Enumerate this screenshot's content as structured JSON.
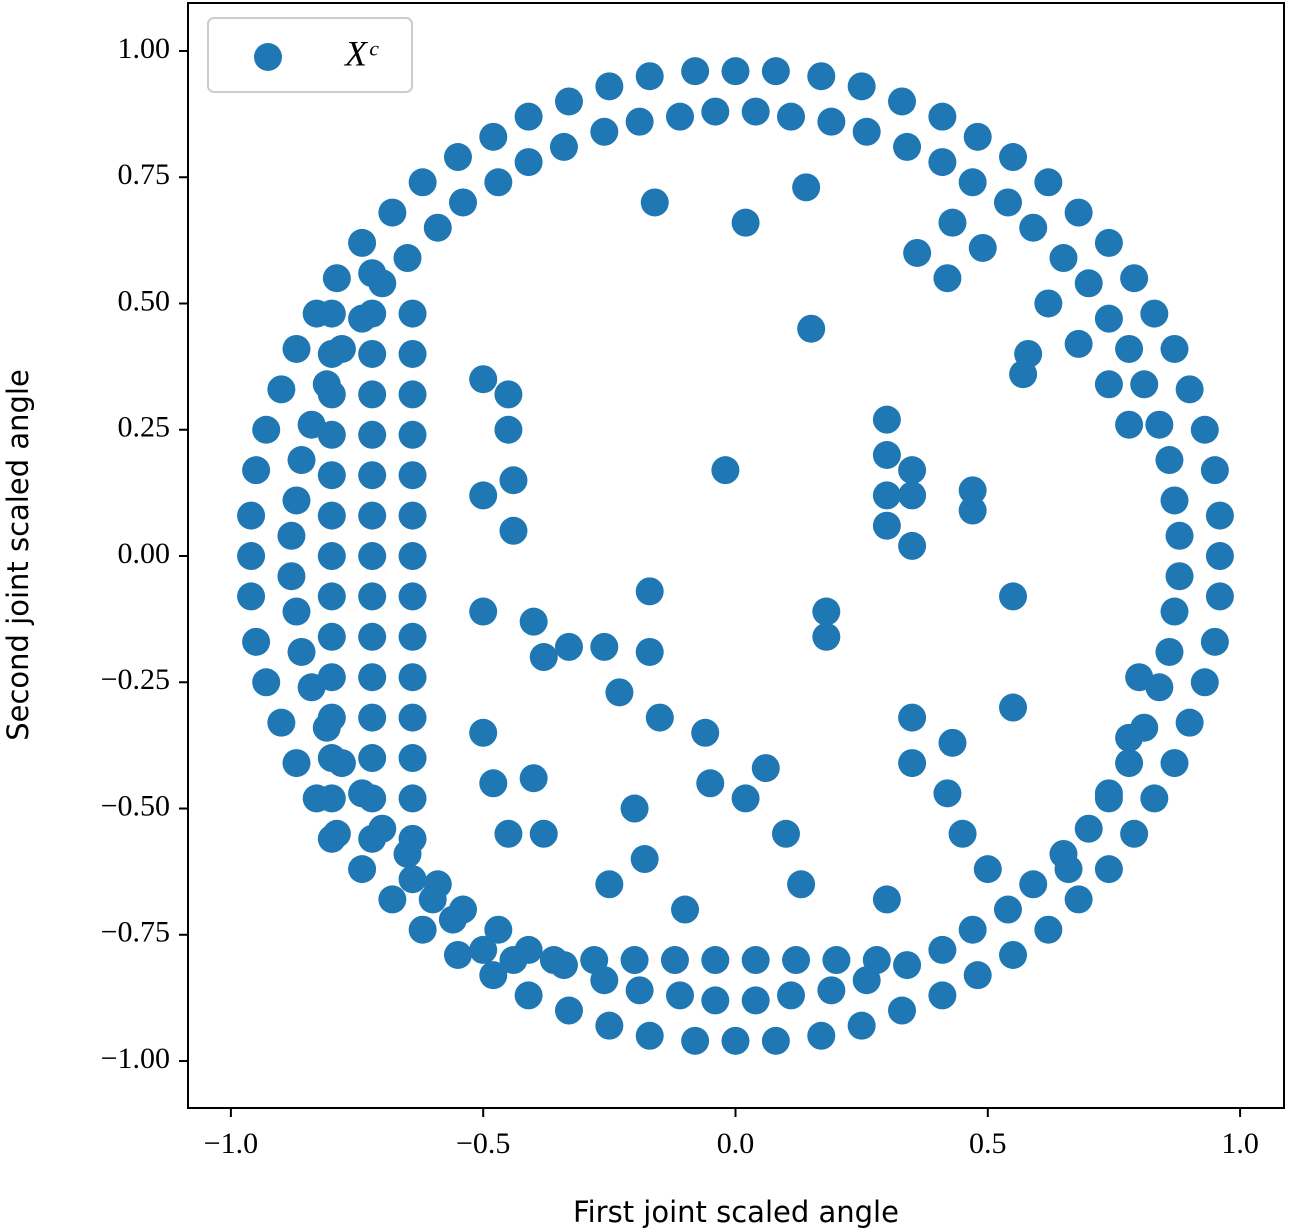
{
  "chart_data": {
    "type": "scatter",
    "xlabel": "First joint scaled angle",
    "ylabel": "Second joint scaled angle",
    "xlim": [
      -1.085,
      1.087
    ],
    "ylim": [
      -1.093,
      1.095
    ],
    "xticks": [
      {
        "value": -1,
        "label": "−1.0"
      },
      {
        "value": -0.5,
        "label": "−0.5"
      },
      {
        "value": 0,
        "label": "0.0"
      },
      {
        "value": 0.5,
        "label": "0.5"
      },
      {
        "value": 1,
        "label": "1.0"
      }
    ],
    "yticks": [
      {
        "value": -1,
        "label": "−1.00"
      },
      {
        "value": -0.75,
        "label": "−0.75"
      },
      {
        "value": -0.5,
        "label": "−0.50"
      },
      {
        "value": -0.25,
        "label": "−0.25"
      },
      {
        "value": 0,
        "label": "0.00"
      },
      {
        "value": 0.25,
        "label": "0.25"
      },
      {
        "value": 0.5,
        "label": "0.50"
      },
      {
        "value": 0.75,
        "label": "0.75"
      },
      {
        "value": 1,
        "label": "1.00"
      }
    ],
    "grid": false,
    "legend": "upper left",
    "series": [
      {
        "name": "Xᶜ",
        "color": "#1f77b4",
        "x": [
          0.96,
          0.96,
          0.95,
          0.93,
          0.9,
          0.87,
          0.83,
          0.79,
          0.74,
          0.68,
          0.62,
          0.55,
          0.48,
          0.41,
          0.33,
          0.25,
          0.17,
          0.08,
          0,
          -0.08,
          -0.17,
          -0.25,
          -0.33,
          -0.41,
          -0.48,
          -0.55,
          -0.62,
          -0.68,
          -0.74,
          -0.79,
          -0.83,
          -0.87,
          -0.9,
          -0.93,
          -0.95,
          -0.96,
          -0.96,
          -0.96,
          -0.95,
          -0.93,
          -0.9,
          -0.87,
          -0.83,
          -0.79,
          -0.74,
          -0.68,
          -0.62,
          -0.55,
          -0.48,
          -0.41,
          -0.33,
          -0.25,
          -0.17,
          -0.08,
          0,
          0.08,
          0.17,
          0.25,
          0.33,
          0.41,
          0.48,
          0.55,
          0.62,
          0.68,
          0.74,
          0.79,
          0.83,
          0.87,
          0.9,
          0.93,
          0.95,
          0.96,
          0.88,
          0.87,
          0.86,
          0.84,
          0.81,
          0.78,
          0.74,
          0.7,
          0.65,
          0.59,
          0.54,
          0.47,
          0.41,
          0.34,
          0.26,
          0.19,
          0.11,
          0.04,
          -0.04,
          -0.11,
          -0.19,
          -0.26,
          -0.34,
          -0.41,
          -0.47,
          -0.54,
          -0.59,
          -0.65,
          -0.7,
          -0.74,
          -0.78,
          -0.81,
          -0.84,
          -0.86,
          -0.87,
          -0.88,
          -0.88,
          -0.87,
          -0.86,
          -0.84,
          -0.81,
          -0.78,
          -0.74,
          -0.7,
          -0.65,
          -0.59,
          -0.54,
          -0.47,
          -0.41,
          -0.34,
          -0.26,
          -0.19,
          -0.11,
          -0.04,
          0.04,
          0.11,
          0.19,
          0.26,
          0.34,
          0.41,
          0.47,
          0.54,
          0.59,
          0.65,
          0.7,
          0.74,
          0.78,
          0.81,
          0.84,
          0.86,
          0.87,
          0.88,
          -0.8,
          -0.8,
          -0.8,
          -0.8,
          -0.8,
          -0.8,
          -0.8,
          -0.8,
          -0.8,
          -0.8,
          -0.8,
          -0.8,
          -0.8,
          -0.8,
          -0.72,
          -0.72,
          -0.72,
          -0.72,
          -0.72,
          -0.72,
          -0.72,
          -0.72,
          -0.72,
          -0.72,
          -0.72,
          -0.72,
          -0.72,
          -0.72,
          -0.72,
          -0.64,
          -0.64,
          -0.64,
          -0.64,
          -0.64,
          -0.64,
          -0.64,
          -0.64,
          -0.64,
          -0.64,
          -0.64,
          -0.64,
          -0.64,
          -0.64,
          -0.64,
          -0.56,
          -0.5,
          -0.6,
          -0.44,
          -0.36,
          -0.28,
          -0.2,
          -0.12,
          -0.04,
          0.04,
          0.12,
          0.2,
          0.28,
          0.66,
          0.74,
          0.78,
          0.8,
          0.62,
          0.68,
          0.74,
          0.78,
          -0.02,
          -0.16,
          0.02,
          0.14,
          0.15,
          0.3,
          0.3,
          0.35,
          0.3,
          0.35,
          0.47,
          0.47,
          0.36,
          0.42,
          0.3,
          0.35,
          -0.5,
          -0.4,
          -0.38,
          -0.33,
          -0.26,
          -0.23,
          -0.17,
          -0.17,
          -0.15,
          -0.5,
          -0.48,
          -0.45,
          -0.4,
          -0.38,
          -0.06,
          -0.05,
          0.02,
          0.06,
          0.1,
          0.13,
          0.18,
          0.18,
          0.35,
          0.35,
          0.43,
          0.42,
          0.45,
          0.55,
          0.55,
          0.5,
          -0.2,
          -0.18,
          -0.25,
          -0.1,
          0.3,
          -0.45,
          -0.5,
          -0.45,
          -0.44,
          -0.44,
          -0.5,
          0.58,
          0.57,
          0.49,
          0.43
        ],
        "values": [
          0,
          0.08,
          0.17,
          0.25,
          0.33,
          0.41,
          0.48,
          0.55,
          0.62,
          0.68,
          0.74,
          0.79,
          0.83,
          0.87,
          0.9,
          0.93,
          0.95,
          0.96,
          0.96,
          0.96,
          0.95,
          0.93,
          0.9,
          0.87,
          0.83,
          0.79,
          0.74,
          0.68,
          0.62,
          0.55,
          0.48,
          0.41,
          0.33,
          0.25,
          0.17,
          0.08,
          0,
          -0.08,
          -0.17,
          -0.25,
          -0.33,
          -0.41,
          -0.48,
          -0.55,
          -0.62,
          -0.68,
          -0.74,
          -0.79,
          -0.83,
          -0.87,
          -0.9,
          -0.93,
          -0.95,
          -0.96,
          -0.96,
          -0.96,
          -0.95,
          -0.93,
          -0.9,
          -0.87,
          -0.83,
          -0.79,
          -0.74,
          -0.68,
          -0.62,
          -0.55,
          -0.48,
          -0.41,
          -0.33,
          -0.25,
          -0.17,
          -0.08,
          0.04,
          0.11,
          0.19,
          0.26,
          0.34,
          0.41,
          0.47,
          0.54,
          0.59,
          0.65,
          0.7,
          0.74,
          0.78,
          0.81,
          0.84,
          0.86,
          0.87,
          0.88,
          0.88,
          0.87,
          0.86,
          0.84,
          0.81,
          0.78,
          0.74,
          0.7,
          0.65,
          0.59,
          0.54,
          0.47,
          0.41,
          0.34,
          0.26,
          0.19,
          0.11,
          0.04,
          -0.04,
          -0.11,
          -0.19,
          -0.26,
          -0.34,
          -0.41,
          -0.47,
          -0.54,
          -0.59,
          -0.65,
          -0.7,
          -0.74,
          -0.78,
          -0.81,
          -0.84,
          -0.86,
          -0.87,
          -0.88,
          -0.88,
          -0.87,
          -0.86,
          -0.84,
          -0.81,
          -0.78,
          -0.74,
          -0.7,
          -0.65,
          -0.59,
          -0.54,
          -0.47,
          -0.41,
          -0.34,
          -0.26,
          -0.19,
          -0.11,
          -0.04,
          -0.56,
          -0.48,
          -0.4,
          -0.32,
          -0.24,
          -0.16,
          -0.08,
          0,
          0.08,
          0.16,
          0.24,
          0.32,
          0.4,
          0.48,
          -0.56,
          -0.48,
          -0.4,
          -0.32,
          -0.24,
          -0.16,
          -0.08,
          0,
          0.08,
          0.16,
          0.24,
          0.32,
          0.4,
          0.48,
          0.56,
          -0.64,
          -0.56,
          -0.48,
          -0.4,
          -0.32,
          -0.24,
          -0.16,
          -0.08,
          0,
          0.08,
          0.16,
          0.24,
          0.32,
          0.4,
          0.48,
          -0.72,
          -0.78,
          -0.68,
          -0.8,
          -0.8,
          -0.8,
          -0.8,
          -0.8,
          -0.8,
          -0.8,
          -0.8,
          -0.8,
          -0.8,
          -0.62,
          -0.48,
          -0.36,
          -0.24,
          0.5,
          0.42,
          0.34,
          0.26,
          0.17,
          0.7,
          0.66,
          0.73,
          0.45,
          0.27,
          0.2,
          0.17,
          0.12,
          0.12,
          0.13,
          0.09,
          0.6,
          0.55,
          0.06,
          0.02,
          -0.11,
          -0.13,
          -0.2,
          -0.18,
          -0.18,
          -0.27,
          -0.07,
          -0.19,
          -0.32,
          -0.35,
          -0.45,
          -0.55,
          -0.44,
          -0.55,
          -0.35,
          -0.45,
          -0.48,
          -0.42,
          -0.55,
          -0.65,
          -0.11,
          -0.16,
          -0.32,
          -0.41,
          -0.37,
          -0.47,
          -0.55,
          -0.08,
          -0.3,
          -0.62,
          -0.5,
          -0.6,
          -0.65,
          -0.7,
          -0.68,
          0.32,
          0.35,
          0.25,
          0.15,
          0.05,
          0.12,
          0.4,
          0.36,
          0.61,
          0.66
        ]
      }
    ]
  }
}
